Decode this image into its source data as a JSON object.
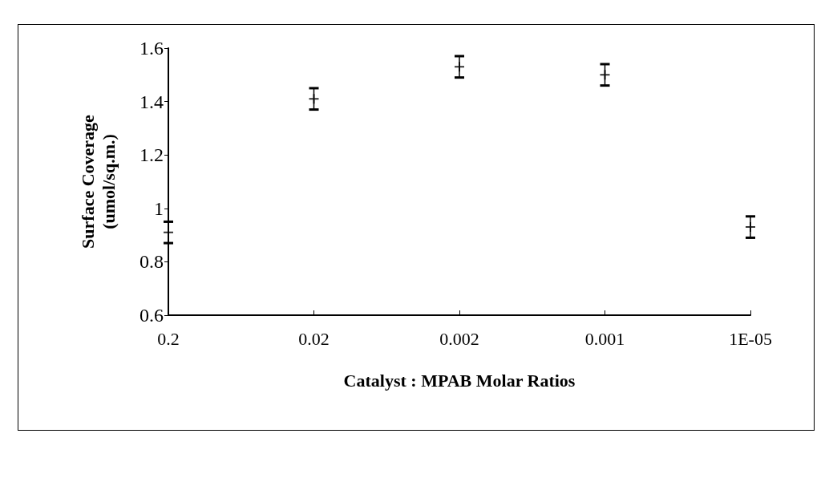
{
  "chart_data": {
    "type": "scatter",
    "xlabel": "Catalyst : MPAB Molar Ratios",
    "ylabel": "Surface Coverage\n(umol/sq.m.)",
    "categories": [
      "0.2",
      "0.02",
      "0.002",
      "0.001",
      "1E-05"
    ],
    "values": [
      0.91,
      1.41,
      1.53,
      1.5,
      0.93
    ],
    "errors": [
      0.04,
      0.04,
      0.04,
      0.04,
      0.04
    ],
    "color": "#000000",
    "marker": "cross",
    "ylim": [
      0.6,
      1.6
    ],
    "yticks": [
      0.6,
      0.8,
      1,
      1.2,
      1.4,
      1.6
    ],
    "grid": false
  }
}
